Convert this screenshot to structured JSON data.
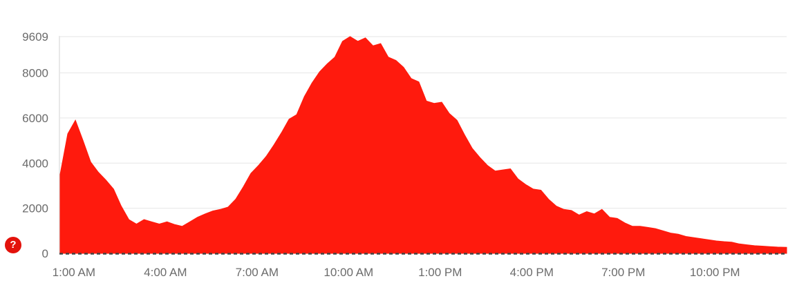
{
  "chart_data": {
    "type": "area",
    "title": "",
    "xlabel": "",
    "ylabel": "",
    "color": "#ff1a0d",
    "ylim": [
      0,
      9609
    ],
    "y_ticks": [
      0,
      2000,
      4000,
      6000,
      8000,
      9609
    ],
    "x_tick_labels": [
      "1:00 AM",
      "4:00 AM",
      "7:00 AM",
      "10:00 AM",
      "1:00 PM",
      "4:00 PM",
      "7:00 PM",
      "10:00 PM"
    ],
    "x_tick_hours": [
      1,
      4,
      7,
      10,
      13,
      16,
      19,
      22
    ],
    "x_range_hours": [
      0.55,
      24.35
    ],
    "series": [
      {
        "x_hours": [
          0.55,
          0.8,
          1.05,
          1.3,
          1.55,
          1.8,
          2.05,
          2.3,
          2.55,
          2.8,
          3.05,
          3.3,
          3.55,
          3.8,
          4.05,
          4.3,
          4.55,
          4.8,
          5.05,
          5.3,
          5.55,
          5.8,
          6.05,
          6.3,
          6.55,
          6.8,
          7.05,
          7.3,
          7.55,
          7.8,
          8.05,
          8.3,
          8.55,
          8.8,
          9.05,
          9.3,
          9.55,
          9.8,
          10.05,
          10.3,
          10.55,
          10.8,
          11.05,
          11.3,
          11.55,
          11.8,
          12.05,
          12.3,
          12.55,
          12.8,
          13.05,
          13.3,
          13.55,
          13.8,
          14.05,
          14.3,
          14.55,
          14.8,
          15.05,
          15.3,
          15.55,
          15.8,
          16.05,
          16.3,
          16.55,
          16.8,
          17.05,
          17.3,
          17.55,
          17.8,
          18.05,
          18.3,
          18.55,
          18.8,
          19.05,
          19.3,
          19.55,
          19.8,
          20.05,
          20.3,
          20.55,
          20.8,
          21.05,
          21.3,
          21.55,
          21.8,
          22.05,
          22.3,
          22.55,
          22.8,
          23.05,
          23.3,
          23.55,
          23.8,
          24.05,
          24.35
        ],
        "values": [
          3500,
          5300,
          5900,
          5000,
          4050,
          3600,
          3250,
          2850,
          2100,
          1500,
          1300,
          1500,
          1400,
          1300,
          1400,
          1280,
          1200,
          1400,
          1600,
          1750,
          1880,
          1950,
          2050,
          2400,
          2950,
          3550,
          3900,
          4300,
          4800,
          5350,
          5950,
          6150,
          6950,
          7550,
          8050,
          8400,
          8700,
          9400,
          9609,
          9400,
          9550,
          9200,
          9300,
          8700,
          8550,
          8250,
          7750,
          7600,
          6750,
          6650,
          6700,
          6200,
          5900,
          5250,
          4650,
          4250,
          3900,
          3650,
          3700,
          3750,
          3300,
          3050,
          2850,
          2800,
          2400,
          2100,
          1950,
          1900,
          1700,
          1850,
          1750,
          1950,
          1600,
          1550,
          1350,
          1200,
          1200,
          1150,
          1100,
          1000,
          900,
          850,
          750,
          700,
          650,
          600,
          550,
          520,
          500,
          420,
          380,
          340,
          320,
          300,
          280,
          270
        ]
      }
    ]
  },
  "help": {
    "glyph": "?"
  }
}
